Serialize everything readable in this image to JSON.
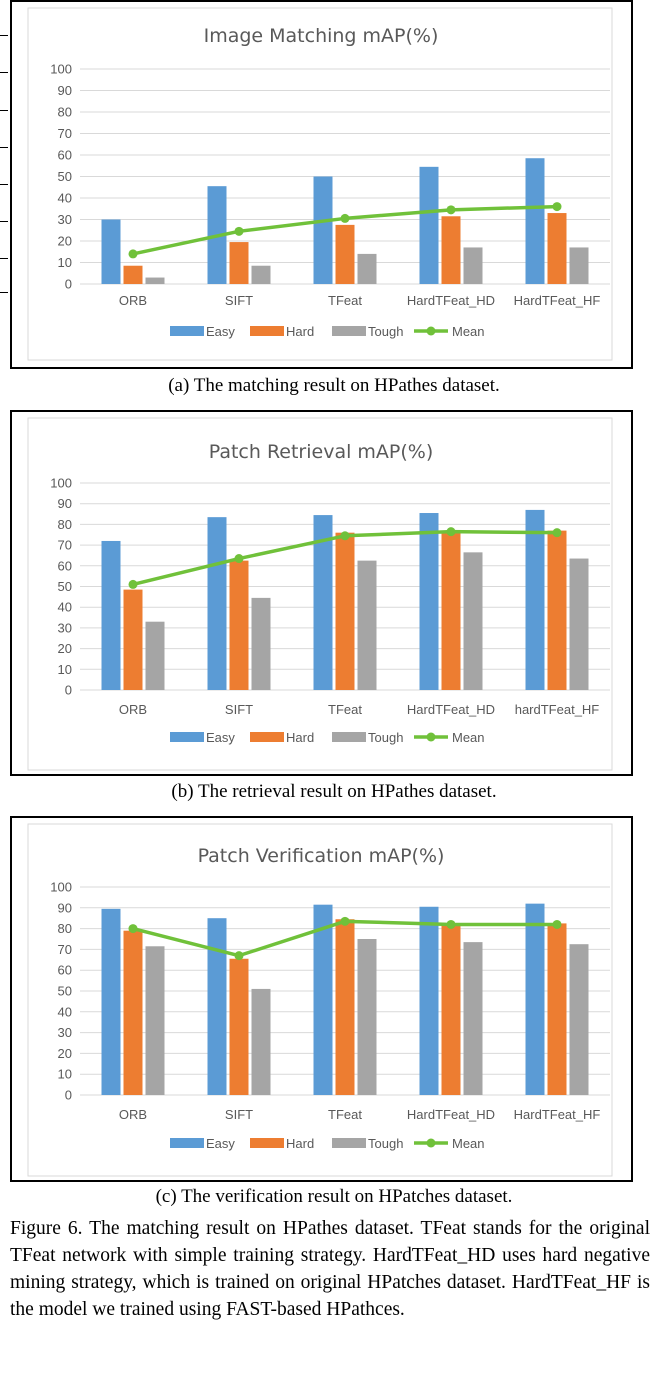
{
  "chart_data": [
    {
      "type": "bar",
      "title": "Image Matching mAP(%)",
      "categories": [
        "ORB",
        "SIFT",
        "TFeat",
        "HardTFeat_HD",
        "HardTFeat_HF"
      ],
      "series": [
        {
          "name": "Easy",
          "values": [
            30,
            45.5,
            50,
            54.5,
            58.5
          ]
        },
        {
          "name": "Hard",
          "values": [
            8.5,
            19.5,
            27.5,
            31.5,
            33
          ]
        },
        {
          "name": "Tough",
          "values": [
            3,
            8.5,
            14,
            17,
            17
          ]
        },
        {
          "name": "Mean",
          "type": "line",
          "values": [
            14,
            24.5,
            30.5,
            34.5,
            36
          ]
        }
      ],
      "ylim": [
        0,
        100
      ],
      "yticks": [
        0,
        10,
        20,
        30,
        40,
        50,
        60,
        70,
        80,
        90,
        100
      ],
      "grid": true,
      "legend": "bottom",
      "colors": {
        "Easy": "#5b9bd5",
        "Hard": "#ed7d31",
        "Tough": "#a5a5a5",
        "Mean": "#70c13a"
      }
    },
    {
      "type": "bar",
      "title": "Patch Retrieval mAP(%)",
      "categories": [
        "ORB",
        "SIFT",
        "TFeat",
        "HardTFeat_HD",
        "hardTFeat_HF"
      ],
      "series": [
        {
          "name": "Easy",
          "values": [
            72,
            83.5,
            84.5,
            85.5,
            87
          ]
        },
        {
          "name": "Hard",
          "values": [
            48.5,
            62.5,
            76,
            77,
            77
          ]
        },
        {
          "name": "Tough",
          "values": [
            33,
            44.5,
            62.5,
            66.5,
            63.5
          ]
        },
        {
          "name": "Mean",
          "type": "line",
          "values": [
            51,
            63.5,
            74.5,
            76.5,
            76
          ]
        }
      ],
      "ylim": [
        0,
        100
      ],
      "yticks": [
        0,
        10,
        20,
        30,
        40,
        50,
        60,
        70,
        80,
        90,
        100
      ],
      "grid": true,
      "legend": "bottom",
      "colors": {
        "Easy": "#5b9bd5",
        "Hard": "#ed7d31",
        "Tough": "#a5a5a5",
        "Mean": "#70c13a"
      }
    },
    {
      "type": "bar",
      "title": "Patch Verification mAP(%)",
      "categories": [
        "ORB",
        "SIFT",
        "TFeat",
        "HardTFeat_HD",
        "HardTFeat_HF"
      ],
      "series": [
        {
          "name": "Easy",
          "values": [
            89.5,
            85,
            91.5,
            90.5,
            92
          ]
        },
        {
          "name": "Hard",
          "values": [
            79,
            65.5,
            84.5,
            82.5,
            82.5
          ]
        },
        {
          "name": "Tough",
          "values": [
            71.5,
            51,
            75,
            73.5,
            72.5
          ]
        },
        {
          "name": "Mean",
          "type": "line",
          "values": [
            80,
            67,
            83.5,
            82,
            82
          ]
        }
      ],
      "ylim": [
        0,
        100
      ],
      "yticks": [
        0,
        10,
        20,
        30,
        40,
        50,
        60,
        70,
        80,
        90,
        100
      ],
      "grid": true,
      "legend": "bottom",
      "colors": {
        "Easy": "#5b9bd5",
        "Hard": "#ed7d31",
        "Tough": "#a5a5a5",
        "Mean": "#70c13a"
      }
    }
  ],
  "captions": [
    "(a)  The matching result on HPathes dataset.",
    "(b)  The retrieval result on HPathes dataset.",
    "(c)  The verification result on HPatches dataset."
  ],
  "figure_caption": "Figure 6. The matching result on HPathes dataset. TFeat stands for the original TFeat network with simple training strategy. HardTFeat_HD uses hard negative mining strategy, which is trained on original HPatches dataset. HardTFeat_HF is the model we trained using FAST-based HPathces."
}
